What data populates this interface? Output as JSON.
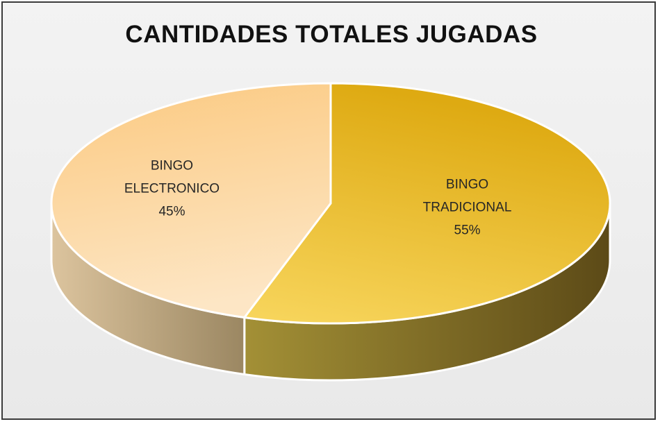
{
  "chart_data": {
    "type": "pie",
    "title": "CANTIDADES TOTALES JUGADAS",
    "slices": [
      {
        "name": "BINGO TRADICIONAL",
        "label_lines": [
          "BINGO",
          "TRADICIONAL",
          "55%"
        ],
        "value": 55,
        "color_light": "#f8d65e",
        "color_dark": "#deaa12",
        "side_light": "#a39036",
        "side_dark": "#5c4a17"
      },
      {
        "name": "BINGO ELECTRONICO",
        "label_lines": [
          "BINGO",
          "ELECTRONICO",
          "45%"
        ],
        "value": 45,
        "color_light": "#fde6c5",
        "color_dark": "#fbca82",
        "side_light": "#dcc49e",
        "side_dark": "#9b8762"
      }
    ],
    "style": "3d-pie",
    "legend": "none",
    "colors": {
      "background": "#efefef",
      "border": "#3a3a3a",
      "separator": "#ffffff",
      "label_text": "#262626"
    }
  }
}
